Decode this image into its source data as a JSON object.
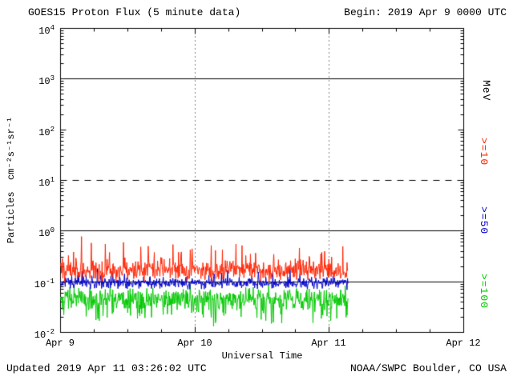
{
  "header": {
    "begin": "Begin: 2019 Apr 9 0000 UTC"
  },
  "footer": {
    "updated": "Updated 2019 Apr 11 03:26:02 UTC",
    "source": "NOAA/SWPC Boulder, CO USA"
  },
  "chart_data": {
    "type": "line",
    "title": "GOES15 Proton Flux (5 minute data)",
    "xlabel": "Universal Time",
    "ylabel": "Particles  cm⁻²s⁻¹sr⁻¹",
    "right_axis_unit": "MeV",
    "x_ticks": [
      "Apr 9",
      "Apr 10",
      "Apr 11",
      "Apr 12"
    ],
    "y_ticks": [
      {
        "base": "10",
        "exp": "4"
      },
      {
        "base": "10",
        "exp": "3"
      },
      {
        "base": "10",
        "exp": "2"
      },
      {
        "base": "10",
        "exp": "1"
      },
      {
        "base": "10",
        "exp": "0"
      },
      {
        "base": "10",
        "exp": "-1"
      },
      {
        "base": "10",
        "exp": "-2"
      }
    ],
    "ylim_log10": [
      -2,
      4
    ],
    "x_days": 3,
    "sample_minutes": 5,
    "data_end_days": 2.1424,
    "grid": {
      "hlines": [
        {
          "log10": 3,
          "style": "solid"
        },
        {
          "log10": 1,
          "style": "dashed"
        },
        {
          "log10": 0,
          "style": "solid"
        },
        {
          "log10": -1,
          "style": "solid"
        }
      ],
      "vlines_days": [
        1,
        2
      ]
    },
    "series": [
      {
        "name": ">=10",
        "color": "#ff2200",
        "seed": 101,
        "base_log10": -0.78,
        "sigma": 0.1,
        "spike_prob": 0.1,
        "spike_max": 0.38,
        "spike_sign": 1,
        "approx_mean_flux": 0.17,
        "approx_range_flux": [
          0.09,
          0.55
        ]
      },
      {
        "name": ">=50",
        "color": "#0000cc",
        "seed": 202,
        "base_log10": -1.02,
        "sigma": 0.055,
        "spike_prob": 0.05,
        "spike_max": 0.08,
        "spike_sign": 1,
        "approx_mean_flux": 0.095,
        "approx_range_flux": [
          0.07,
          0.15
        ]
      },
      {
        "name": ">=100",
        "color": "#00c800",
        "seed": 303,
        "base_log10": -1.33,
        "sigma": 0.1,
        "spike_prob": 0.15,
        "spike_max": 0.3,
        "spike_sign": -1,
        "approx_mean_flux": 0.047,
        "approx_range_flux": [
          0.016,
          0.08
        ]
      }
    ],
    "colors": {
      "axis": "#000000",
      "red": "#ff2200",
      "blue": "#0000cc",
      "green": "#00c800"
    }
  }
}
